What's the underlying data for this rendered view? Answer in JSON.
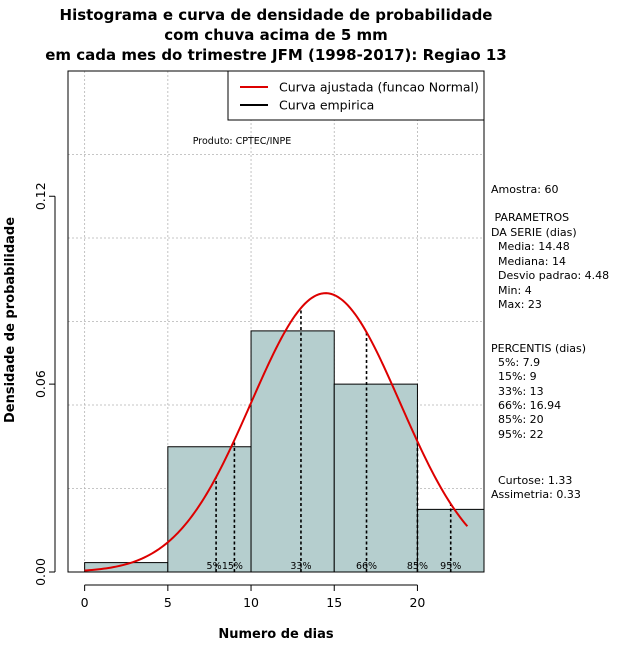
{
  "chart_data": {
    "type": "bar",
    "title": [
      "Histograma e curva de densidade de probabilidade",
      "com chuva acima de 5 mm",
      "em cada mes do trimestre JFM (1998-2017): Regiao 13"
    ],
    "xlabel": "Numero de dias",
    "ylabel": "Densidade de probabilidade",
    "xlim": [
      -1,
      24
    ],
    "ylim": [
      0,
      0.16
    ],
    "xticks": [
      0,
      5,
      10,
      15,
      20
    ],
    "yticks": [
      0.0,
      0.06,
      0.12
    ],
    "ytick_labels": [
      "0.00",
      "0.06",
      "0.12"
    ],
    "grid": true,
    "bins": [
      {
        "from": 0,
        "to": 5,
        "density": 0.003
      },
      {
        "from": 5,
        "to": 10,
        "density": 0.04
      },
      {
        "from": 10,
        "to": 15,
        "density": 0.077
      },
      {
        "from": 15,
        "to": 20,
        "density": 0.06
      },
      {
        "from": 20,
        "to": 24,
        "density": 0.02
      }
    ],
    "normal_curve": {
      "mean": 14.48,
      "sd": 4.48,
      "x_from": 0,
      "x_to": 23
    },
    "percentiles": [
      {
        "label": "5%",
        "x": 7.9
      },
      {
        "label": "15%",
        "x": 9
      },
      {
        "label": "33%",
        "x": 13
      },
      {
        "label": "66%",
        "x": 16.94
      },
      {
        "label": "85%",
        "x": 20
      },
      {
        "label": "95%",
        "x": 22
      }
    ],
    "legend": {
      "position": "top-right",
      "entries": [
        {
          "label": "Curva ajustada (funcao Normal)",
          "color": "#dd0000"
        },
        {
          "label": "Curva empirica",
          "color": "#000000"
        }
      ]
    },
    "product_label": "Produto: CPTEC/INPE",
    "stats_lines": [
      "Amostra: 60",
      " PARAMETROS",
      "DA SERIE (dias)",
      "  Media: 14.48",
      "  Mediana: 14",
      "  Desvio padrao: 4.48",
      "  Min: 4",
      "  Max: 23",
      "PERCENTIS (dias)",
      "  5%: 7.9",
      "  15%: 9",
      "  33%: 13",
      "  66%: 16.94",
      "  85%: 20",
      "  95%: 22",
      "  Curtose: 1.33",
      "Assimetria: 0.33"
    ],
    "colors": {
      "bar_fill": "#b5cece",
      "curve": "#dd0000",
      "grid": "#b4b4b4"
    }
  }
}
